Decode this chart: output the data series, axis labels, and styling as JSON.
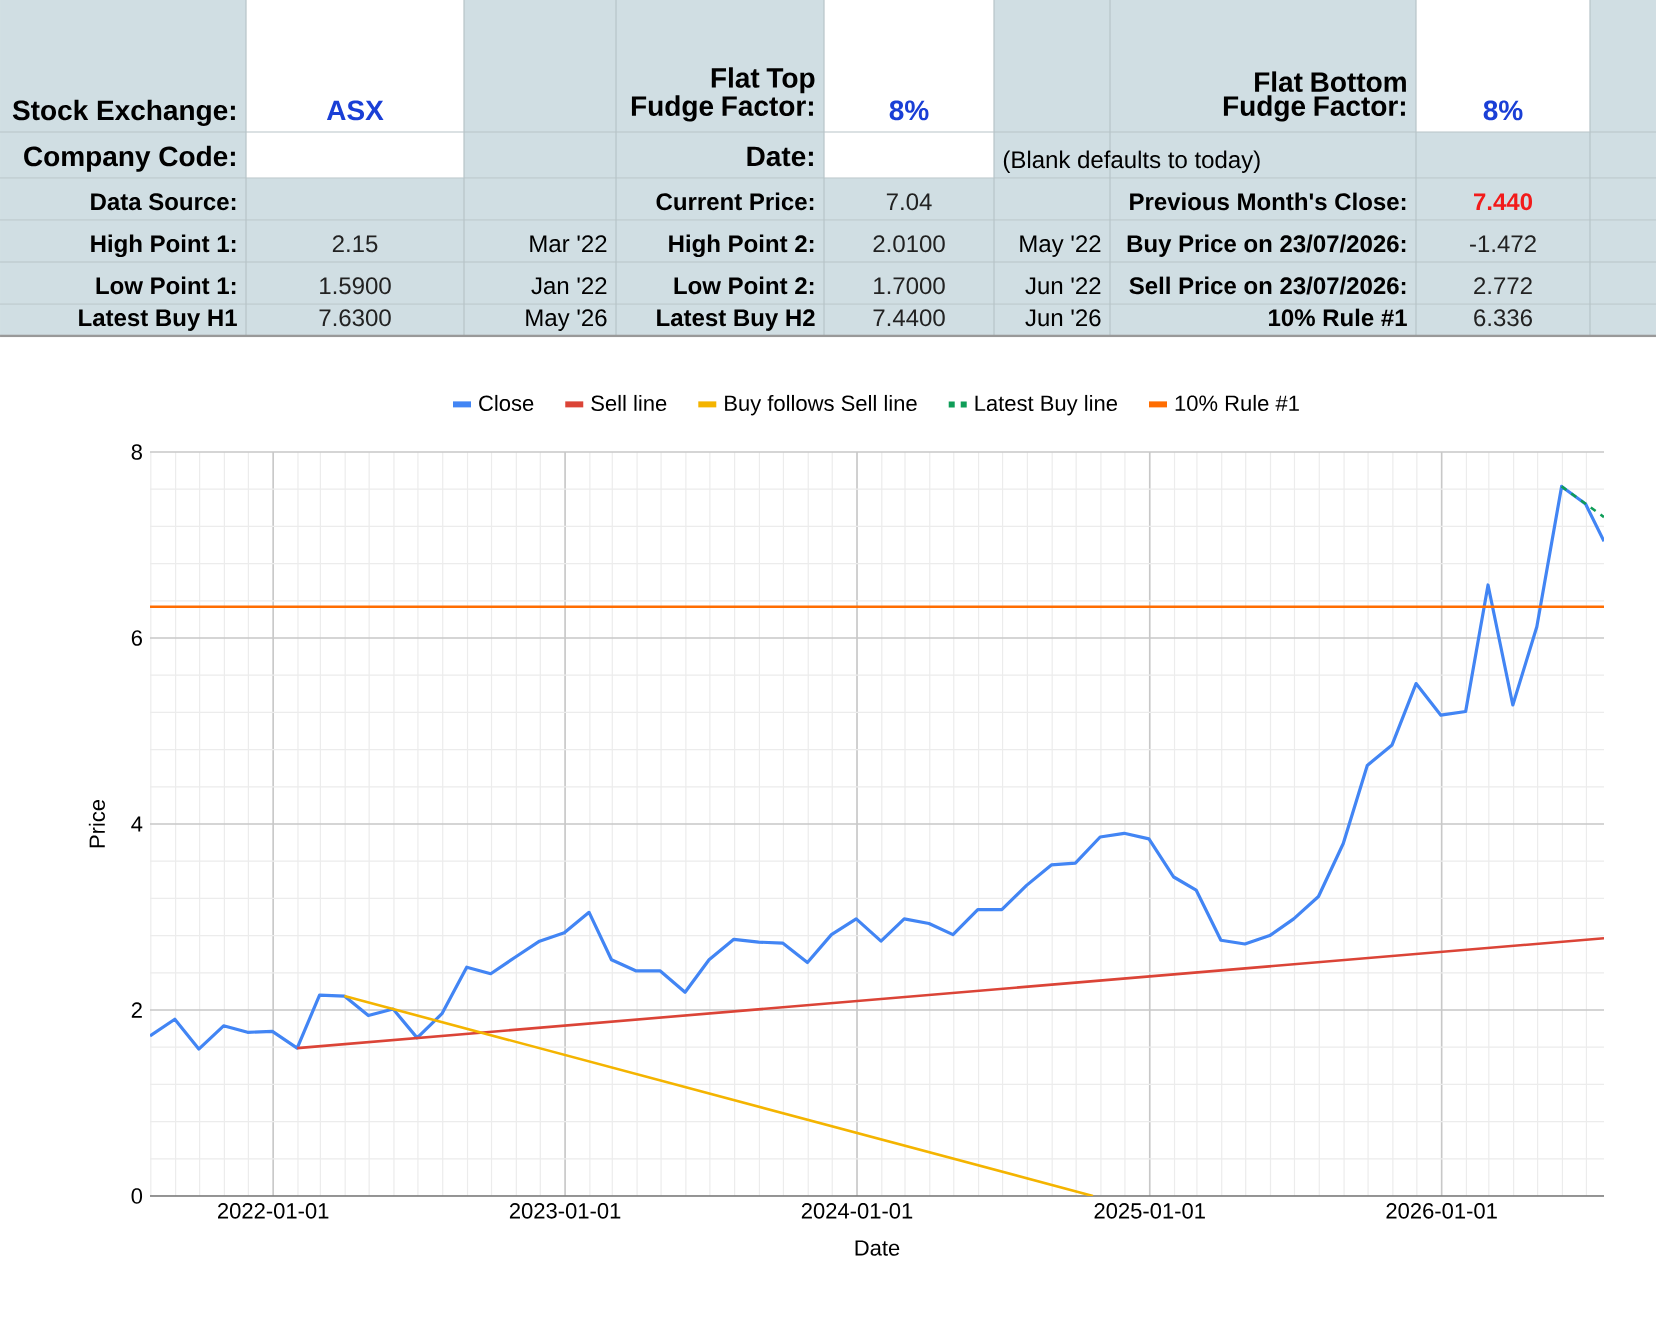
{
  "chart_data": {
    "type": "line",
    "xlabel": "Date",
    "ylabel": "Price",
    "annotations": [
      "Stock Exchange:",
      "ASX",
      "Flat Top Fudge Factor:",
      "8%",
      "Flat  Bottom Fudge Factor:",
      "8%",
      "Company Code:",
      "Date:",
      "(Blank defaults to today)",
      "Data Source:",
      "Current Price:",
      "7.04",
      "Previous Month's Close:",
      "7.440",
      "High Point 1:",
      "2.15",
      "Mar '22",
      "High Point 2:",
      "2.0100",
      "May '22",
      "Buy Price on 23/07/2026:",
      "-1.472",
      "Low Point 1:",
      "1.5900",
      "Jan '22",
      "Low Point 2:",
      "1.7000",
      "Jun '22",
      "Sell Price on 23/07/2026:",
      "2.772",
      "Latest Buy H1",
      "7.6300",
      "May '26",
      "Latest Buy H2",
      "7.4400",
      "Jun '26",
      "10% Rule #1",
      "6.336"
    ],
    "x": [
      "2021-07-31",
      "2021-08-31",
      "2021-09-30",
      "2021-10-31",
      "2021-11-30",
      "2021-12-31",
      "2022-01-31",
      "2022-02-28",
      "2022-03-31",
      "2022-04-30",
      "2022-05-31",
      "2022-06-30",
      "2022-07-31",
      "2022-08-31",
      "2022-09-30",
      "2022-10-31",
      "2022-11-30",
      "2022-12-31",
      "2023-01-31",
      "2023-02-28",
      "2023-03-31",
      "2023-04-30",
      "2023-05-31",
      "2023-06-30",
      "2023-07-31",
      "2023-08-31",
      "2023-09-30",
      "2023-10-31",
      "2023-11-30",
      "2023-12-31",
      "2024-01-31",
      "2024-02-29",
      "2024-03-31",
      "2024-04-30",
      "2024-05-31",
      "2024-06-30",
      "2024-07-31",
      "2024-08-31",
      "2024-09-30",
      "2024-10-31",
      "2024-11-30",
      "2024-12-31",
      "2025-01-31",
      "2025-02-28",
      "2025-03-31",
      "2025-04-30",
      "2025-05-31",
      "2025-06-30",
      "2025-07-31",
      "2025-08-31",
      "2025-09-30",
      "2025-10-31",
      "2025-11-30",
      "2025-12-31",
      "2026-01-31",
      "2026-02-28",
      "2026-03-31",
      "2026-04-30",
      "2026-05-31",
      "2026-06-30",
      "2026-07-23"
    ],
    "series": [
      {
        "name": "Close",
        "color": "#4285f4",
        "values": [
          1.72,
          1.9,
          1.58,
          1.83,
          1.76,
          1.77,
          1.59,
          2.16,
          2.15,
          1.94,
          2.01,
          1.7,
          1.96,
          2.46,
          2.39,
          2.57,
          2.74,
          2.83,
          3.05,
          2.54,
          2.42,
          2.42,
          2.19,
          2.54,
          2.76,
          2.73,
          2.72,
          2.51,
          2.81,
          2.98,
          2.74,
          2.98,
          2.93,
          2.81,
          3.08,
          3.08,
          3.34,
          3.56,
          3.58,
          3.86,
          3.9,
          3.84,
          3.43,
          3.29,
          2.75,
          2.71,
          2.8,
          2.98,
          3.22,
          3.79,
          4.63,
          4.85,
          5.51,
          5.17,
          5.21,
          6.57,
          5.28,
          6.12,
          7.63,
          7.44,
          7.04
        ]
      },
      {
        "name": "Sell line",
        "color": "#db4437",
        "x": [
          "2022-01-31",
          "2026-07-23"
        ],
        "values": [
          1.59,
          2.772
        ]
      },
      {
        "name": "Buy follows Sell line",
        "color": "#f4b400",
        "x": [
          "2022-03-31",
          "2024-10-22"
        ],
        "values": [
          2.15,
          0
        ]
      },
      {
        "name": "Latest Buy line",
        "color": "#0f9d58",
        "line_style": "dashed",
        "x": [
          "2026-05-31",
          "2026-07-23"
        ],
        "values": [
          7.63,
          7.3
        ]
      },
      {
        "name": "10% Rule #1",
        "color": "#ff6d01",
        "x": [
          "2021-07-31",
          "2026-07-23"
        ],
        "values": [
          6.336,
          6.336
        ]
      }
    ],
    "xlim": [
      "2021-07-31",
      "2026-07-23"
    ],
    "xticks": [
      "2022-01-01",
      "2023-01-01",
      "2024-01-01",
      "2025-01-01",
      "2026-01-01"
    ],
    "ylim": [
      0,
      8
    ],
    "yticks": [
      0,
      2,
      4,
      6,
      8
    ],
    "grid": true,
    "legend": "top"
  }
}
